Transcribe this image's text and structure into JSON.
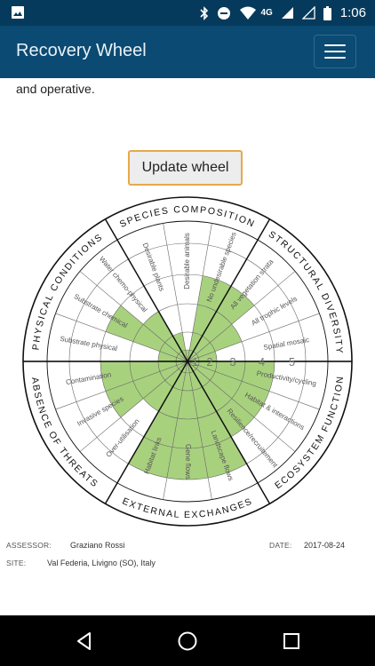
{
  "status_bar": {
    "network": "4G",
    "time": "1:06"
  },
  "app_bar": {
    "title": "Recovery Wheel"
  },
  "intro": {
    "text": "and operative."
  },
  "update_button": {
    "label": "Update wheel"
  },
  "wheel": {
    "attributes": [
      {
        "name": "SPECIES COMPOSITION",
        "sub": [
          "Desirable plants",
          "Desirable animals",
          "No undesirable species"
        ],
        "levels": [
          2,
          1,
          4
        ]
      },
      {
        "name": "STRUCTURAL DIVERSITY",
        "sub": [
          "All vegetation strata",
          "All trophic levels",
          "Spatial mosaic"
        ],
        "levels": [
          4,
          3,
          2
        ]
      },
      {
        "name": "ECOSYSTEM FUNCTION",
        "sub": [
          "Productivity/cycling",
          "Habitat & interactions",
          "Resilience/recruitement"
        ],
        "levels": [
          4,
          4,
          4
        ]
      },
      {
        "name": "EXTERNAL EXCHANGES",
        "sub": [
          "Landscape flows",
          "Gene flows",
          "Habitat links"
        ],
        "levels": [
          5,
          5,
          5
        ]
      },
      {
        "name": "ABSENCE OF THREATS",
        "sub": [
          "Over-utilisation",
          "Invasive species",
          "Contamination"
        ],
        "levels": [
          3,
          4,
          4
        ]
      },
      {
        "name": "PHYSICAL CONDITIONS",
        "sub": [
          "Substrate physical",
          "Substrate chemical",
          "Water chemo-physical"
        ],
        "levels": [
          2,
          4,
          3
        ]
      }
    ],
    "scale_labels": [
      "1",
      "2",
      "3",
      "4",
      "5"
    ],
    "fill_color": "#a8d17e",
    "line_color": "#111111",
    "ring_color": "#666666"
  },
  "footer": {
    "assessor_label": "ASSESSOR:",
    "assessor_value": "Graziano Rossi",
    "date_label": "DATE:",
    "date_value": "2017-08-24",
    "site_label": "SITE:",
    "site_value": "Val Federia, Livigno (SO), Italy"
  },
  "icons": {
    "status_left": "image-icon",
    "status_right": [
      "bluetooth-icon",
      "do-not-disturb-icon",
      "wifi-icon",
      "signal-icon",
      "signal-empty-icon",
      "battery-icon"
    ],
    "nav": [
      "back-icon",
      "home-icon",
      "recents-icon"
    ]
  }
}
